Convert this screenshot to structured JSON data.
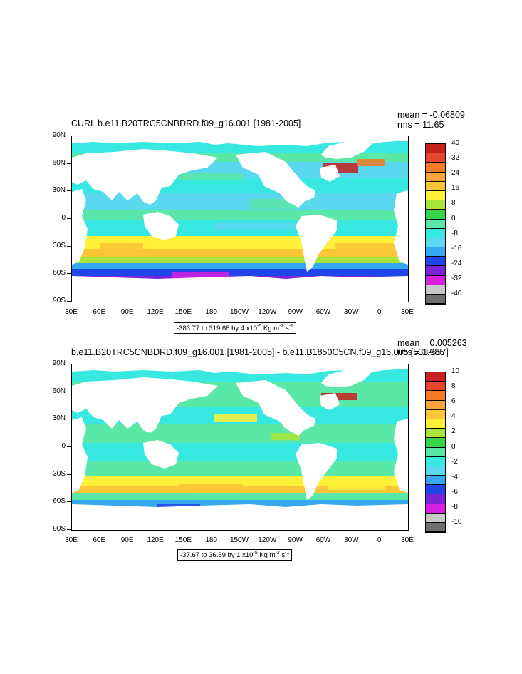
{
  "panels": [
    {
      "title": "CURL b.e11.B20TRC5CNBDRD.f09_g16.001 [1981-2005]",
      "mean": "mean = -0.06809",
      "rms": "rms = 11.65",
      "range_label": "-383.77 to 319.68 by 4 x10",
      "range_exp": "-5",
      "range_unit": " Kg m",
      "range_unit_exp": "-2",
      "range_s": " s",
      "range_s_exp": "-1",
      "colorbar_labels": [
        "40",
        "32",
        "24",
        "16",
        "8",
        "0",
        "-8",
        "-16",
        "-24",
        "-32",
        "-40"
      ]
    },
    {
      "title": "b.e11.B20TRC5CNBDRD.f09_g16.001 [1981-2005] - b.e11.B1850C5CN.f09_g16.005 [533-557]",
      "mean": "mean = 0.005263",
      "rms": "rms = 1.985",
      "range_label": "-37.67 to 36.59 by 1 x10",
      "range_exp": "-5",
      "range_unit": " Kg m",
      "range_unit_exp": "-2",
      "range_s": " s",
      "range_s_exp": "-1",
      "colorbar_labels": [
        "10",
        "8",
        "6",
        "4",
        "2",
        "0",
        "-2",
        "-4",
        "-6",
        "-8",
        "-10"
      ]
    }
  ],
  "y_ticks": [
    "90N",
    "60N",
    "30N",
    "0",
    "30S",
    "60S",
    "90S"
  ],
  "x_ticks": [
    "30E",
    "60E",
    "90E",
    "120E",
    "150E",
    "180",
    "150W",
    "120W",
    "90W",
    "60W",
    "30W",
    "0",
    "30E"
  ],
  "colors": {
    "colorbar": [
      "#c8201e",
      "#e8442c",
      "#f57a26",
      "#f8a43a",
      "#fbc636",
      "#fff03a",
      "#a8e43a",
      "#36d64a",
      "#5ae8a8",
      "#36e8e0",
      "#5ad8f0",
      "#36a8f0",
      "#1e46e8",
      "#7c22d8",
      "#d81ee0",
      "#c8c8c8",
      "#6e6e6e"
    ]
  },
  "chart_data": [
    {
      "type": "heatmap",
      "title": "CURL b.e11.B20TRC5CNBDRD.f09_g16.001 [1981-2005]",
      "xlabel": "",
      "ylabel": "",
      "x_ticks": [
        "30E",
        "60E",
        "90E",
        "120E",
        "150E",
        "180",
        "150W",
        "120W",
        "90W",
        "60W",
        "30W",
        "0",
        "30E"
      ],
      "y_ticks": [
        "90N",
        "60N",
        "30N",
        "0",
        "30S",
        "60S",
        "90S"
      ],
      "levels": [
        -40,
        -32,
        -24,
        -16,
        -8,
        0,
        8,
        16,
        24,
        32,
        40
      ],
      "mean": -0.06809,
      "rms": 11.65,
      "min": -383.77,
      "max": 319.68,
      "interval": 4
    },
    {
      "type": "heatmap",
      "title": "b.e11.B20TRC5CNBDRD.f09_g16.001 [1981-2005] - b.e11.B1850C5CN.f09_g16.005 [533-557]",
      "xlabel": "",
      "ylabel": "",
      "x_ticks": [
        "30E",
        "60E",
        "90E",
        "120E",
        "150E",
        "180",
        "150W",
        "120W",
        "90W",
        "60W",
        "30W",
        "0",
        "30E"
      ],
      "y_ticks": [
        "90N",
        "60N",
        "30N",
        "0",
        "30S",
        "60S",
        "90S"
      ],
      "levels": [
        -10,
        -8,
        -6,
        -4,
        -2,
        0,
        2,
        4,
        6,
        8,
        10
      ],
      "mean": 0.005263,
      "rms": 1.985,
      "min": -37.67,
      "max": 36.59,
      "interval": 1
    }
  ]
}
